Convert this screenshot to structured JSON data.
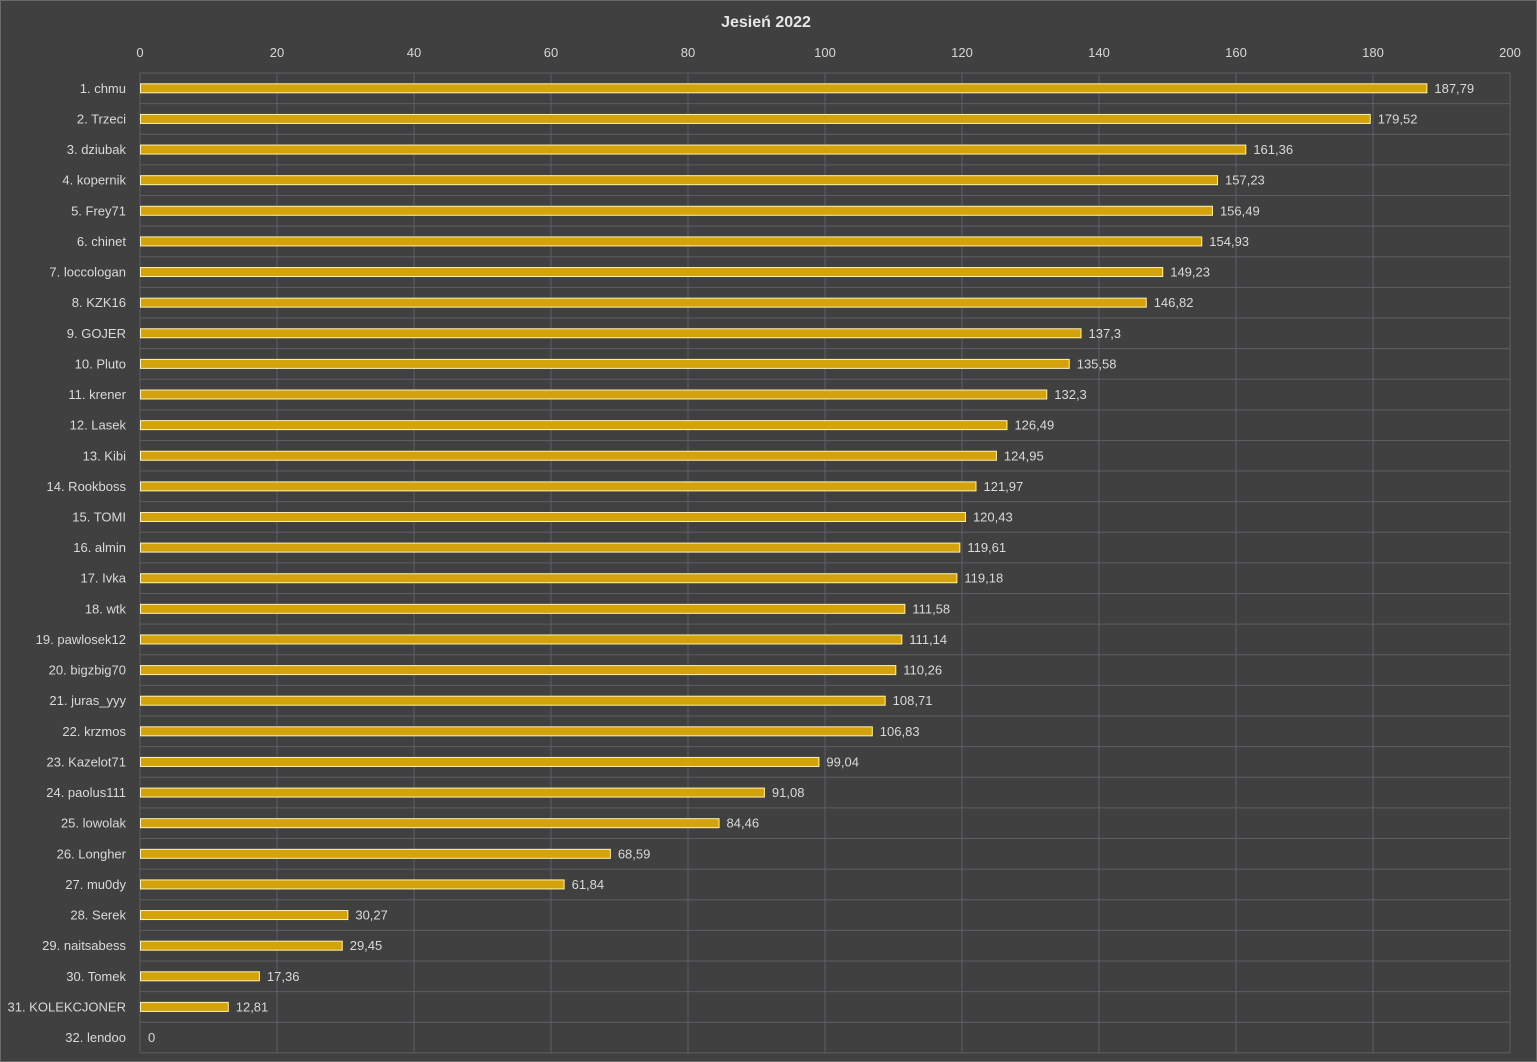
{
  "chart_data": {
    "type": "bar",
    "orientation": "horizontal",
    "title": "Jesień 2022",
    "xlabel": "",
    "ylabel": "",
    "xlim": [
      0,
      200
    ],
    "xticks": [
      0,
      20,
      40,
      60,
      80,
      100,
      120,
      140,
      160,
      180,
      200
    ],
    "grid": true,
    "axis_position": "top",
    "colors": {
      "background": "#404040",
      "bar_fill": "#d4a20a",
      "bar_stroke": "#fff2b0",
      "grid": "#5a5f66",
      "text": "#d9d9d9"
    },
    "categories": [
      "1. chmu",
      "2. Trzeci",
      "3. dziubak",
      "4. kopernik",
      "5. Frey71",
      "6. chinet",
      "7. loccologan",
      "8. KZK16",
      "9. GOJER",
      "10. Pluto",
      "11. krener",
      "12. Lasek",
      "13. Kibi",
      "14. Rookboss",
      "15. TOMI",
      "16. almin",
      "17. Ivka",
      "18. wtk",
      "19. pawlosek12",
      "20. bigzbig70",
      "21. juras_yyy",
      "22. krzmos",
      "23. Kazelot71",
      "24. paolus111",
      "25. lowolak",
      "26. Longher",
      "27. mu0dy",
      "28. Serek",
      "29. naitsabess",
      "30. Tomek",
      "31. KOLEKCJONER",
      "32. lendoo"
    ],
    "values": [
      187.79,
      179.52,
      161.36,
      157.23,
      156.49,
      154.93,
      149.23,
      146.82,
      137.3,
      135.58,
      132.3,
      126.49,
      124.95,
      121.97,
      120.43,
      119.61,
      119.18,
      111.58,
      111.14,
      110.26,
      108.71,
      106.83,
      99.04,
      91.08,
      84.46,
      68.59,
      61.84,
      30.27,
      29.45,
      17.36,
      12.81,
      0
    ],
    "value_labels": [
      "187,79",
      "179,52",
      "161,36",
      "157,23",
      "156,49",
      "154,93",
      "149,23",
      "146,82",
      "137,3",
      "135,58",
      "132,3",
      "126,49",
      "124,95",
      "121,97",
      "120,43",
      "119,61",
      "119,18",
      "111,58",
      "111,14",
      "110,26",
      "108,71",
      "106,83",
      "99,04",
      "91,08",
      "84,46",
      "68,59",
      "61,84",
      "30,27",
      "29,45",
      "17,36",
      "12,81",
      "0"
    ]
  }
}
